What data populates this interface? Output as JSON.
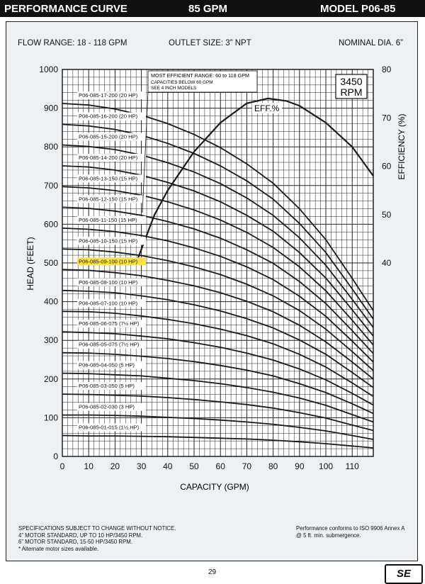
{
  "header": {
    "left": "PERFORMANCE CURVE",
    "center": "85 GPM",
    "right": "MODEL  P06-85"
  },
  "specs": {
    "flow_range": "FLOW RANGE: 18 - 118 GPM",
    "outlet": "OUTLET SIZE: 3” NPT",
    "nominal": "NOMINAL DIA. 6”"
  },
  "rpm_box": {
    "line1": "3450",
    "line2": "RPM"
  },
  "note": {
    "line1": "MOST EFFICIENT RANGE: 60 to 118 GPM",
    "line2": "CAPACITIES BELOW 60 GPM",
    "line3": "SEE 4 INCH MODELS"
  },
  "eff_label": "EFF.%",
  "footer": {
    "left1": "SPECIFICATIONS SUBJECT TO CHANGE WITHOUT NOTICE.",
    "left2": "4” MOTOR STANDARD, UP TO 10 HP/3450 RPM.",
    "left3": "6” MOTOR STANDARD, 15-50 HP/3450 RPM.",
    "left4": "* Alternate motor sizes available.",
    "right1": "Performance conforms to ISO 9906 Annex A",
    "right2": "@ 5 ft. min. submergence.",
    "page": "29",
    "logo": "SE"
  },
  "colors": {
    "grid": "#222222",
    "curve": "#1a1a1a",
    "highlight": "#ffe23a",
    "background": "#eef1f4"
  },
  "chart_data": {
    "type": "line",
    "xlabel": "CAPACITY (GPM)",
    "ylabel": "HEAD (FEET)",
    "y2label": "EFFICIENCY (%)",
    "xlim": [
      0,
      118
    ],
    "ylim": [
      0,
      1000
    ],
    "y2lim": [
      0,
      80
    ],
    "xticks": [
      0,
      10,
      20,
      30,
      40,
      50,
      60,
      70,
      80,
      90,
      100,
      110
    ],
    "yticks": [
      0,
      100,
      200,
      300,
      400,
      500,
      600,
      700,
      800,
      900,
      1000
    ],
    "y2ticks": [
      40,
      50,
      60,
      70,
      80
    ],
    "highlighted": "P06-085-09-100 (10 HP)",
    "series": [
      {
        "name": "P06-085-17-200 (20 HP)",
        "x": [
          0,
          10,
          20,
          30,
          40,
          50,
          60,
          70,
          80,
          90,
          100,
          110,
          118
        ],
        "y": [
          912,
          908,
          898,
          882,
          860,
          832,
          798,
          756,
          706,
          640,
          560,
          460,
          377
        ]
      },
      {
        "name": "P06-085-16-200 (20 HP)",
        "x": [
          0,
          10,
          20,
          30,
          40,
          50,
          60,
          70,
          80,
          90,
          100,
          110,
          118
        ],
        "y": [
          858,
          854,
          845,
          830,
          809,
          783,
          751,
          712,
          665,
          602,
          527,
          433,
          355
        ]
      },
      {
        "name": "P06-085-15-200 (20 HP)",
        "x": [
          0,
          10,
          20,
          30,
          40,
          50,
          60,
          70,
          80,
          90,
          100,
          110,
          118
        ],
        "y": [
          805,
          801,
          793,
          779,
          759,
          735,
          705,
          668,
          623,
          565,
          494,
          406,
          333
        ]
      },
      {
        "name": "P06-085-14-200 (20 HP)",
        "x": [
          0,
          10,
          20,
          30,
          40,
          50,
          60,
          70,
          80,
          90,
          100,
          110,
          118
        ],
        "y": [
          751,
          748,
          740,
          727,
          708,
          686,
          658,
          623,
          582,
          527,
          461,
          379,
          311
        ]
      },
      {
        "name": "P06-085-13-150 (15 HP)",
        "x": [
          0,
          10,
          20,
          30,
          40,
          50,
          60,
          70,
          80,
          90,
          100,
          110,
          118
        ],
        "y": [
          697,
          694,
          687,
          675,
          658,
          637,
          611,
          579,
          540,
          490,
          428,
          352,
          288
        ]
      },
      {
        "name": "P06-085-12-150 (15 HP)",
        "x": [
          0,
          10,
          20,
          30,
          40,
          50,
          60,
          70,
          80,
          90,
          100,
          110,
          118
        ],
        "y": [
          644,
          641,
          634,
          623,
          607,
          588,
          564,
          534,
          499,
          452,
          395,
          325,
          266
        ]
      },
      {
        "name": "P06-085-11-150 (15 HP)",
        "x": [
          0,
          10,
          20,
          30,
          40,
          50,
          60,
          70,
          80,
          90,
          100,
          110,
          118
        ],
        "y": [
          590,
          587,
          581,
          571,
          557,
          539,
          517,
          490,
          457,
          414,
          362,
          298,
          244
        ]
      },
      {
        "name": "P06-085-10-150 (15 HP)",
        "x": [
          0,
          10,
          20,
          30,
          40,
          50,
          60,
          70,
          80,
          90,
          100,
          110,
          118
        ],
        "y": [
          536,
          534,
          528,
          519,
          506,
          490,
          470,
          445,
          415,
          377,
          329,
          271,
          222
        ]
      },
      {
        "name": "P06-085-09-100 (10 HP)",
        "x": [
          0,
          10,
          20,
          30,
          40,
          50,
          60,
          70,
          80,
          90,
          100,
          110,
          118
        ],
        "y": [
          483,
          481,
          475,
          467,
          455,
          441,
          423,
          401,
          374,
          339,
          296,
          244,
          200
        ]
      },
      {
        "name": "P06-085-08-100 (10 HP)",
        "x": [
          0,
          10,
          20,
          30,
          40,
          50,
          60,
          70,
          80,
          90,
          100,
          110,
          118
        ],
        "y": [
          429,
          427,
          423,
          415,
          405,
          392,
          376,
          356,
          332,
          301,
          264,
          217,
          178
        ]
      },
      {
        "name": "P06-085-07-100 (10 HP)",
        "x": [
          0,
          10,
          20,
          30,
          40,
          50,
          60,
          70,
          80,
          90,
          100,
          110,
          118
        ],
        "y": [
          375,
          374,
          370,
          363,
          354,
          343,
          329,
          312,
          291,
          264,
          231,
          190,
          155
        ]
      },
      {
        "name": "P06-085-06-075 (7½ HP)",
        "x": [
          0,
          10,
          20,
          30,
          40,
          50,
          60,
          70,
          80,
          90,
          100,
          110,
          118
        ],
        "y": [
          322,
          320,
          317,
          311,
          304,
          294,
          282,
          267,
          249,
          226,
          198,
          163,
          133
        ]
      },
      {
        "name": "P06-085-05-075 (7½ HP)",
        "x": [
          0,
          10,
          20,
          30,
          40,
          50,
          60,
          70,
          80,
          90,
          100,
          110,
          118
        ],
        "y": [
          268,
          267,
          264,
          259,
          253,
          245,
          235,
          223,
          208,
          188,
          165,
          136,
          111
        ]
      },
      {
        "name": "P06-085-04-050 (5 HP)",
        "x": [
          0,
          10,
          20,
          30,
          40,
          50,
          60,
          70,
          80,
          90,
          100,
          110,
          118
        ],
        "y": [
          215,
          214,
          211,
          208,
          202,
          196,
          188,
          178,
          166,
          151,
          132,
          108,
          89
        ]
      },
      {
        "name": "P06-085-03-050 (5 HP)",
        "x": [
          0,
          10,
          20,
          30,
          40,
          50,
          60,
          70,
          80,
          90,
          100,
          110,
          118
        ],
        "y": [
          161,
          160,
          158,
          156,
          152,
          147,
          141,
          134,
          125,
          113,
          99,
          81,
          67
        ]
      },
      {
        "name": "P06-085-02-030 (3 HP)",
        "x": [
          0,
          10,
          20,
          30,
          40,
          50,
          60,
          70,
          80,
          90,
          100,
          110,
          118
        ],
        "y": [
          107,
          107,
          106,
          104,
          101,
          98,
          94,
          89,
          83,
          75,
          66,
          54,
          44
        ]
      },
      {
        "name": "P06-085-01-015 (1½ HP)",
        "x": [
          0,
          10,
          20,
          30,
          40,
          50,
          60,
          70,
          80,
          90,
          100,
          110,
          118
        ],
        "y": [
          54,
          53,
          53,
          52,
          51,
          49,
          47,
          45,
          42,
          38,
          33,
          27,
          22
        ]
      }
    ],
    "efficiency": {
      "name": "EFF.%",
      "x": [
        28,
        35,
        40,
        50,
        60,
        70,
        78,
        85,
        90,
        100,
        110,
        118
      ],
      "y": [
        40,
        50,
        55,
        63,
        69,
        73,
        74,
        73.5,
        72.5,
        69,
        64,
        58
      ]
    }
  }
}
